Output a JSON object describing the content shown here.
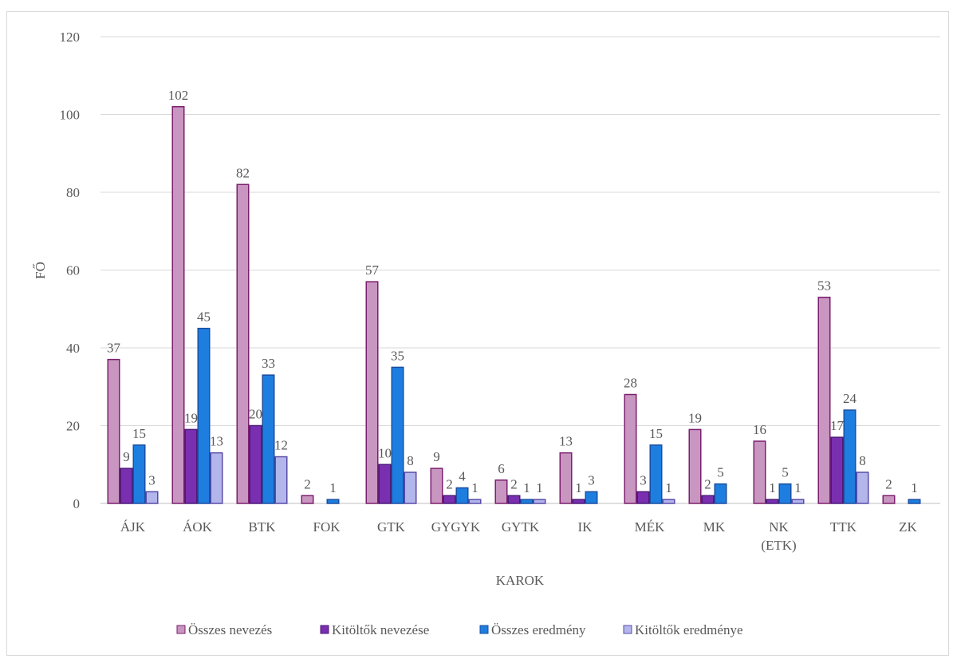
{
  "chart_data": {
    "type": "bar",
    "xlabel": "KAROK",
    "ylabel": "FŐ",
    "ylim": [
      0,
      120
    ],
    "yticks": [
      0,
      20,
      40,
      60,
      80,
      100,
      120
    ],
    "grid": true,
    "legend_position": "bottom",
    "categories": [
      [
        "ÁJK"
      ],
      [
        "ÁOK"
      ],
      [
        "BTK"
      ],
      [
        "FOK"
      ],
      [
        "GTK"
      ],
      [
        "GYGYK"
      ],
      [
        "GYTK"
      ],
      [
        "IK"
      ],
      [
        "MÉK"
      ],
      [
        "MK"
      ],
      [
        "NK",
        "(ETK)"
      ],
      [
        "TTK"
      ],
      [
        "ZK"
      ]
    ],
    "series": [
      {
        "name": "Összes nevezés",
        "fill": "#c896c0",
        "stroke": "#7b1f6e",
        "values": [
          37,
          102,
          82,
          2,
          57,
          9,
          6,
          13,
          28,
          19,
          16,
          53,
          2
        ],
        "labels": [
          "37",
          "102",
          "82",
          "2",
          "57",
          "9",
          "6",
          "13",
          "28",
          "19",
          "16",
          "53",
          "2"
        ]
      },
      {
        "name": "Kitöltők nevezése",
        "fill": "#7a2fb0",
        "stroke": "#4b1a78",
        "values": [
          9,
          19,
          20,
          0,
          10,
          2,
          2,
          1,
          3,
          2,
          1,
          17,
          0
        ],
        "labels": [
          "9",
          "19",
          "20",
          "",
          "10",
          "2",
          "2",
          "1",
          "3",
          "2",
          "1",
          "17",
          ""
        ]
      },
      {
        "name": "Összes eredmény",
        "fill": "#1e7ee0",
        "stroke": "#1a4fa0",
        "values": [
          15,
          45,
          33,
          1,
          35,
          4,
          1,
          3,
          15,
          5,
          5,
          24,
          1
        ],
        "labels": [
          "15",
          "45",
          "33",
          "1",
          "35",
          "4",
          "1",
          "3",
          "15",
          "5",
          "5",
          "24",
          "1"
        ]
      },
      {
        "name": "Kitöltők eredménye",
        "fill": "#b3b6ea",
        "stroke": "#5a4aa8",
        "values": [
          3,
          13,
          12,
          0,
          8,
          1,
          1,
          0,
          1,
          0,
          1,
          8,
          0
        ],
        "labels": [
          "3",
          "13",
          "12",
          "",
          "8",
          "1",
          "1",
          "",
          "1",
          "",
          "1",
          "8",
          ""
        ]
      }
    ]
  }
}
